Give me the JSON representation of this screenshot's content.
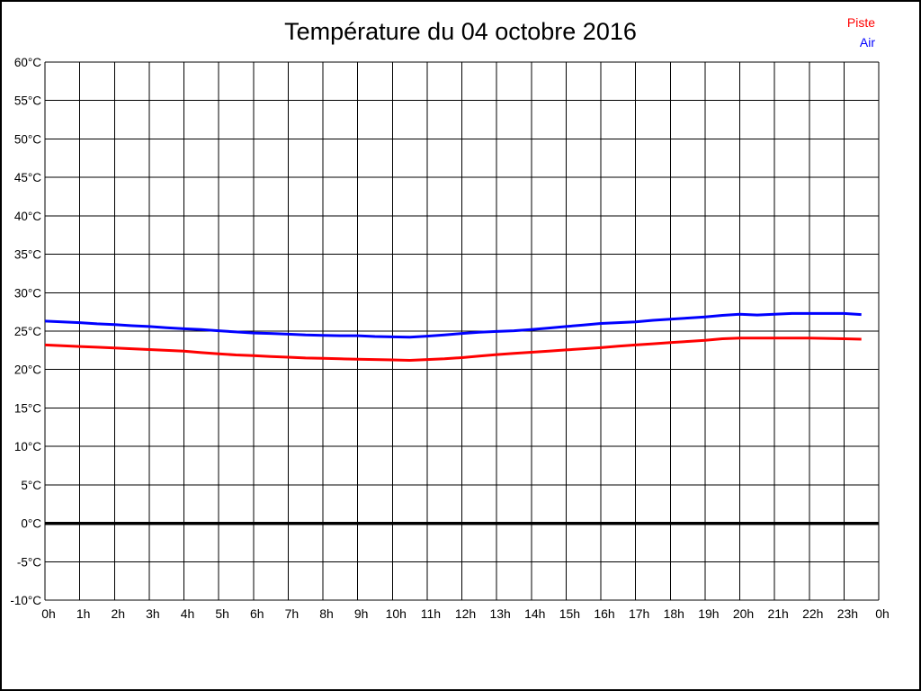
{
  "page": {
    "background": "#ffffff",
    "border_color": "#000000"
  },
  "title": "Température du 04 octobre 2016",
  "legend": [
    {
      "label": "Piste",
      "color": "#ff0000"
    },
    {
      "label": "Air",
      "color": "#0000ff"
    }
  ],
  "chart_data": {
    "type": "line",
    "title": "Température du 04 octobre 2016",
    "xlabel": "",
    "ylabel": "",
    "grid": true,
    "grid_color": "#000000",
    "legend_position": "top-right",
    "xlim": [
      0,
      24
    ],
    "ylim": [
      -10,
      60
    ],
    "y_ticks": [
      60,
      55,
      50,
      45,
      40,
      35,
      30,
      25,
      20,
      15,
      10,
      5,
      0,
      -5,
      -10
    ],
    "y_tick_labels": [
      "60°C",
      "55°C",
      "50°C",
      "45°C",
      "40°C",
      "35°C",
      "30°C",
      "25°C",
      "20°C",
      "15°C",
      "10°C",
      "5°C",
      "0°C",
      "-5°C",
      "-10°C"
    ],
    "x_ticks": [
      0,
      1,
      2,
      3,
      4,
      5,
      6,
      7,
      8,
      9,
      10,
      11,
      12,
      13,
      14,
      15,
      16,
      17,
      18,
      19,
      20,
      21,
      22,
      23,
      24
    ],
    "x_tick_labels": [
      "0h",
      "1h",
      "2h",
      "3h",
      "4h",
      "5h",
      "6h",
      "7h",
      "8h",
      "9h",
      "10h",
      "11h",
      "12h",
      "13h",
      "14h",
      "15h",
      "16h",
      "17h",
      "18h",
      "19h",
      "20h",
      "21h",
      "22h",
      "23h",
      "0h"
    ],
    "zero_line": {
      "value": 0,
      "bold": true
    },
    "x": [
      0,
      0.5,
      1,
      1.5,
      2,
      2.5,
      3,
      3.5,
      4,
      4.5,
      5,
      5.5,
      6,
      6.5,
      7,
      7.5,
      8,
      8.5,
      9,
      9.5,
      10,
      10.5,
      11,
      11.5,
      12,
      12.5,
      13,
      13.5,
      14,
      14.5,
      15,
      15.5,
      16,
      16.5,
      17,
      17.5,
      18,
      18.5,
      19,
      19.5,
      20,
      20.5,
      21,
      21.5,
      22,
      22.5,
      23,
      23.5
    ],
    "series": [
      {
        "name": "Piste",
        "color": "#ff0000",
        "values": [
          23.2,
          23.1,
          23.0,
          22.9,
          22.8,
          22.7,
          22.6,
          22.5,
          22.4,
          22.2,
          22.05,
          21.9,
          21.8,
          21.7,
          21.6,
          21.5,
          21.45,
          21.4,
          21.35,
          21.3,
          21.25,
          21.2,
          21.3,
          21.4,
          21.55,
          21.75,
          21.95,
          22.1,
          22.25,
          22.4,
          22.55,
          22.7,
          22.85,
          23.05,
          23.2,
          23.35,
          23.5,
          23.65,
          23.8,
          24.0,
          24.1,
          24.1,
          24.1,
          24.1,
          24.1,
          24.05,
          24.0,
          23.95
        ]
      },
      {
        "name": "Air",
        "color": "#0000ff",
        "values": [
          26.3,
          26.2,
          26.1,
          25.95,
          25.85,
          25.7,
          25.6,
          25.45,
          25.3,
          25.2,
          25.05,
          24.9,
          24.75,
          24.7,
          24.6,
          24.5,
          24.45,
          24.4,
          24.4,
          24.3,
          24.25,
          24.2,
          24.35,
          24.5,
          24.7,
          24.85,
          24.95,
          25.05,
          25.2,
          25.4,
          25.6,
          25.8,
          26.0,
          26.1,
          26.2,
          26.4,
          26.55,
          26.7,
          26.85,
          27.05,
          27.2,
          27.1,
          27.2,
          27.3,
          27.3,
          27.3,
          27.3,
          27.15
        ]
      }
    ]
  }
}
